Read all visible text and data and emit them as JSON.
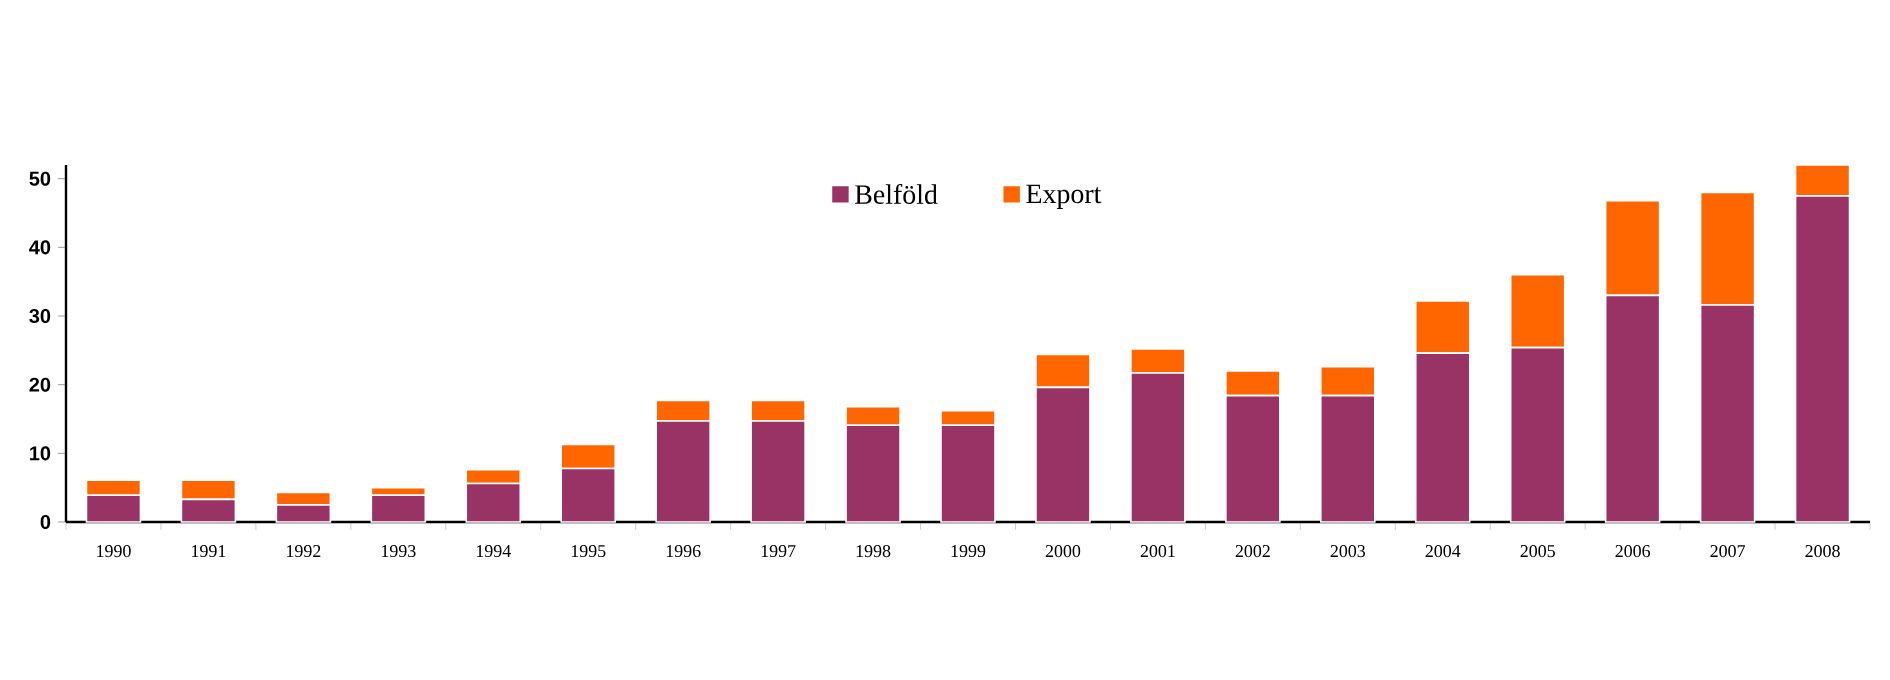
{
  "chart_data": {
    "type": "bar",
    "stacked": true,
    "categories": [
      "1990",
      "1991",
      "1992",
      "1993",
      "1994",
      "1995",
      "1996",
      "1997",
      "1998",
      "1999",
      "2000",
      "2001",
      "2002",
      "2003",
      "2004",
      "2005",
      "2006",
      "2007",
      "2008"
    ],
    "series": [
      {
        "name": "Belföld",
        "color": "#993366",
        "values": [
          3.9,
          3.3,
          2.5,
          3.9,
          5.6,
          7.8,
          14.7,
          14.7,
          14.1,
          14.1,
          19.6,
          21.7,
          18.4,
          18.4,
          24.6,
          25.4,
          33.0,
          31.6,
          47.5
        ]
      },
      {
        "name": "Export",
        "color": "#ff6600",
        "values": [
          2.2,
          2.8,
          1.8,
          1.1,
          2.0,
          3.5,
          3.0,
          3.0,
          2.7,
          2.1,
          4.8,
          3.5,
          3.6,
          4.2,
          7.6,
          10.6,
          13.8,
          16.4,
          4.5
        ]
      }
    ],
    "ylim": [
      0,
      52
    ],
    "yticks": [
      0,
      10,
      20,
      30,
      40,
      50
    ],
    "grid": false,
    "legend": "top"
  }
}
